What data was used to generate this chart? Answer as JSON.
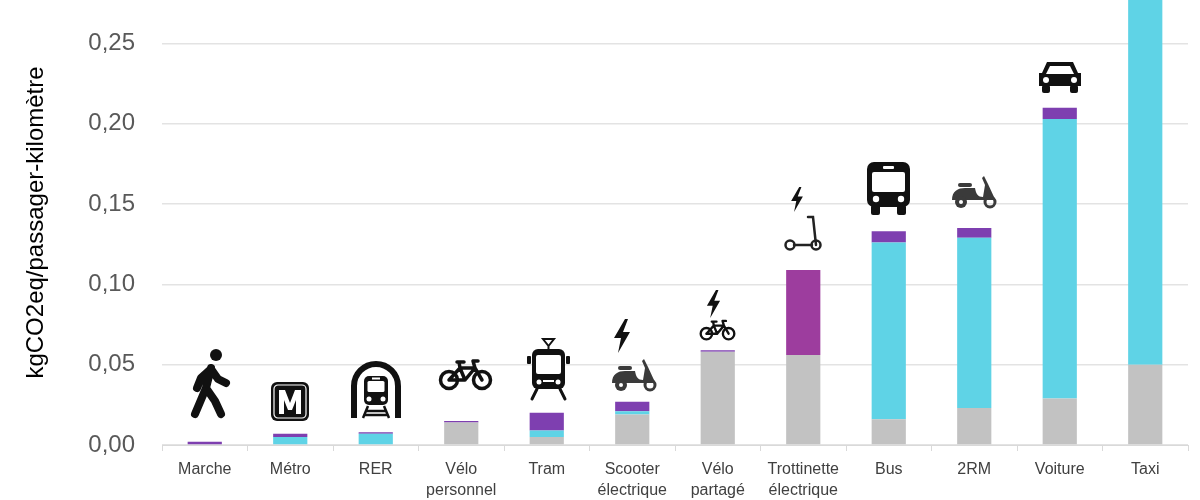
{
  "chart_data": {
    "type": "bar",
    "stacked": true,
    "categories": [
      "Marche",
      "Métro",
      "RER",
      "Vélo personnel",
      "Tram",
      "Scooter électrique",
      "Vélo partagé",
      "Trottinette électrique",
      "Bus",
      "2RM",
      "Voiture",
      "Taxi"
    ],
    "series": [
      {
        "color": "#c2c2c2",
        "values": [
          null,
          null,
          null,
          0.014,
          0.005,
          0.019,
          0.058,
          0.056,
          0.016,
          0.023,
          0.029,
          0.05
        ]
      },
      {
        "color": "#5fd3e6",
        "values": [
          null,
          0.005,
          0.007,
          null,
          0.004,
          0.002,
          null,
          null,
          0.11,
          0.106,
          0.174,
          0.227
        ]
      },
      {
        "colors": [
          "#7e3fb0",
          "#7e3fb0",
          "#7e3fb0",
          "#7e3fb0",
          "#7e3fb0",
          "#7e3fb0",
          "#7e3fb0",
          "#9d3d9e",
          "#7e3fb0",
          "#7e3fb0",
          "#7e3fb0",
          "#7e3fb0"
        ],
        "values": [
          0.002,
          0.002,
          0.001,
          0.001,
          0.011,
          0.006,
          0.001,
          0.053,
          0.007,
          0.006,
          0.007,
          null
        ]
      }
    ],
    "ylabel": "kgCO2eq/passager-kilomètre",
    "ylim": [
      0,
      0.277
    ],
    "yticks": [
      {
        "value": 0,
        "label": "0,00"
      },
      {
        "value": 0.05,
        "label": "0,05"
      },
      {
        "value": 0.1,
        "label": "0,10"
      },
      {
        "value": 0.15,
        "label": "0,15"
      },
      {
        "value": 0.2,
        "label": "0,20"
      },
      {
        "value": 0.25,
        "label": "0,25"
      }
    ],
    "grid": "y"
  }
}
